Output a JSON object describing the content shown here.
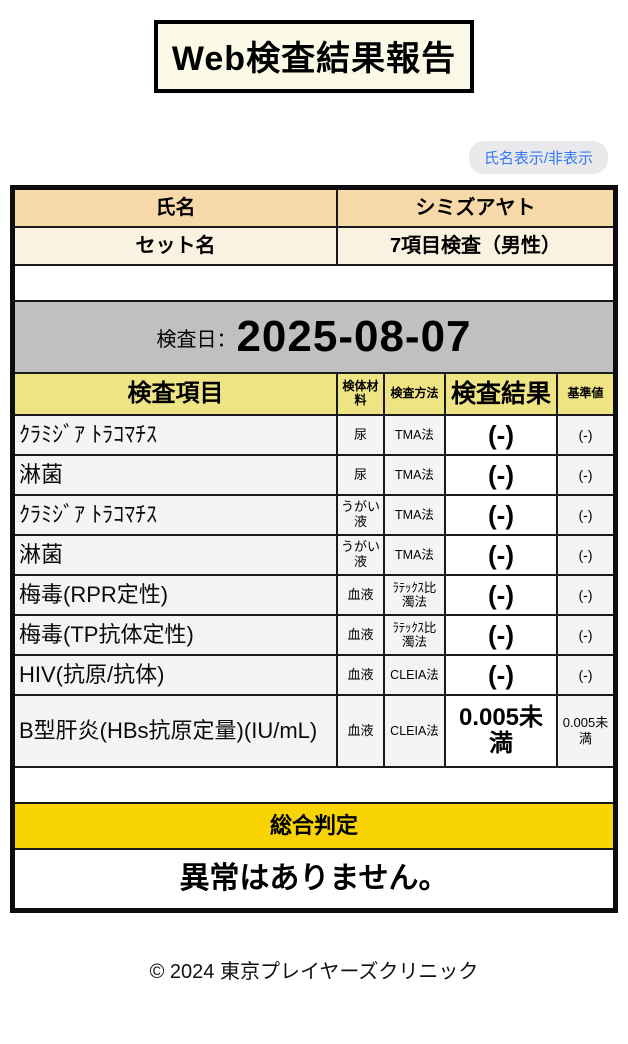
{
  "page": {
    "title": "Web検査結果報告",
    "toggle_button_label": "氏名表示/非表示",
    "footer": "© 2024 東京プレイヤーズクリニック"
  },
  "patient": {
    "name_label": "氏名",
    "name_value": "シミズアヤト",
    "set_label": "セット名",
    "set_value": "7項目検査（男性）"
  },
  "exam": {
    "date_label": "検査日：",
    "date_value": "2025-08-07"
  },
  "results_table": {
    "headers": {
      "item": "検査項目",
      "specimen": "検体材料",
      "method": "検査方法",
      "result": "検査結果",
      "reference": "基準値"
    },
    "rows": [
      {
        "item": "ｸﾗﾐｼﾞｱ ﾄﾗｺﾏﾁｽ",
        "specimen": "尿",
        "method": "TMA法",
        "result": "(-)",
        "reference": "(-)"
      },
      {
        "item": "淋菌",
        "specimen": "尿",
        "method": "TMA法",
        "result": "(-)",
        "reference": "(-)"
      },
      {
        "item": "ｸﾗﾐｼﾞｱ ﾄﾗｺﾏﾁｽ",
        "specimen": "うがい液",
        "method": "TMA法",
        "result": "(-)",
        "reference": "(-)"
      },
      {
        "item": "淋菌",
        "specimen": "うがい液",
        "method": "TMA法",
        "result": "(-)",
        "reference": "(-)"
      },
      {
        "item": "梅毒(RPR定性)",
        "specimen": "血液",
        "method": "ﾗﾃｯｸｽ比濁法",
        "result": "(-)",
        "reference": "(-)"
      },
      {
        "item": "梅毒(TP抗体定性)",
        "specimen": "血液",
        "method": "ﾗﾃｯｸｽ比濁法",
        "result": "(-)",
        "reference": "(-)"
      },
      {
        "item": "HIV(抗原/抗体)",
        "specimen": "血液",
        "method": "CLEIA法",
        "result": "(-)",
        "reference": "(-)"
      },
      {
        "item": "B型肝炎(HBs抗原定量)(IU/mL)",
        "specimen": "血液",
        "method": "CLEIA法",
        "result": "0.005未満",
        "reference": "0.005未満"
      }
    ]
  },
  "verdict": {
    "label": "総合判定",
    "value": "異常はありません。"
  },
  "colors": {
    "name_row_bg": "#f7d8a8",
    "set_row_bg": "#faf2e0",
    "date_row_bg": "#c0c0c0",
    "header_row_bg": "#efe483",
    "verdict_bar_bg": "#f9d404",
    "data_row_bg": "#f4f4f6",
    "title_box_bg": "#fbfae6",
    "border": "#1a1a1a",
    "toggle_text": "#3478f6",
    "toggle_bg": "#e9e9eb"
  }
}
